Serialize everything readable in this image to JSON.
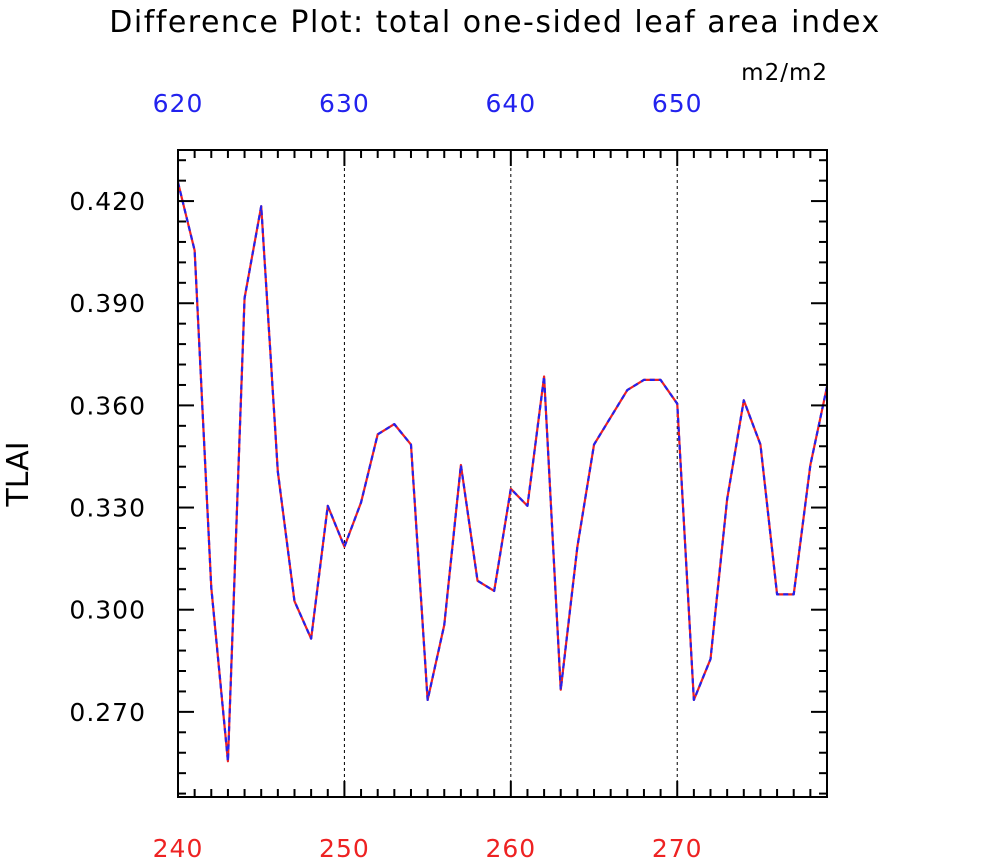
{
  "chart_data": {
    "type": "line",
    "title": "Difference Plot: total one-sided leaf area index",
    "units": "m2/m2",
    "ylabel": "TLAI",
    "xlabel": "",
    "xlim": [
      240,
      279
    ],
    "ylim": [
      0.245,
      0.435
    ],
    "x_ticks_bottom": [
      240,
      250,
      260,
      270
    ],
    "x_ticks_top": [
      620,
      630,
      640,
      650
    ],
    "y_ticks": [
      0.27,
      0.3,
      0.33,
      0.36,
      0.39,
      0.42
    ],
    "y_tick_labels": [
      "0.270",
      "0.300",
      "0.330",
      "0.360",
      "0.390",
      "0.420"
    ],
    "grid": "vertical dashed at major x ticks",
    "colors": {
      "bottom_axis_labels": "#ee2222",
      "top_axis_labels": "#2222ee",
      "series_a": "#ee2222",
      "series_b": "#2222ee"
    },
    "x": [
      240,
      241,
      242,
      243,
      244,
      245,
      246,
      247,
      248,
      249,
      250,
      251,
      252,
      253,
      254,
      255,
      256,
      257,
      258,
      259,
      260,
      261,
      262,
      263,
      264,
      265,
      266,
      267,
      268,
      269,
      270,
      271,
      272,
      273,
      274,
      275,
      276,
      277,
      278,
      279
    ],
    "series": [
      {
        "values": [
          0.4255,
          0.4055,
          0.3065,
          0.2555,
          0.3915,
          0.4185,
          0.3405,
          0.3025,
          0.2915,
          0.3305,
          0.3185,
          0.3315,
          0.3515,
          0.3545,
          0.3485,
          0.2735,
          0.2955,
          0.3425,
          0.3085,
          0.3055,
          0.3355,
          0.3305,
          0.3685,
          0.2765,
          0.3185,
          0.3485,
          0.3565,
          0.3645,
          0.3675,
          0.3675,
          0.3605,
          0.2735,
          0.2855,
          0.3325,
          0.3615,
          0.3485,
          0.3045,
          0.3045,
          0.3425,
          0.3655
        ]
      },
      {
        "values": [
          0.4255,
          0.4055,
          0.3065,
          0.2555,
          0.3915,
          0.4185,
          0.3405,
          0.3025,
          0.2915,
          0.3305,
          0.3185,
          0.3315,
          0.3515,
          0.3545,
          0.3485,
          0.2735,
          0.2955,
          0.3425,
          0.3085,
          0.3055,
          0.3355,
          0.3305,
          0.3685,
          0.2765,
          0.3185,
          0.3485,
          0.3565,
          0.3645,
          0.3675,
          0.3675,
          0.3605,
          0.2735,
          0.2855,
          0.3325,
          0.3615,
          0.3485,
          0.3045,
          0.3045,
          0.3425,
          0.3655
        ]
      }
    ]
  }
}
